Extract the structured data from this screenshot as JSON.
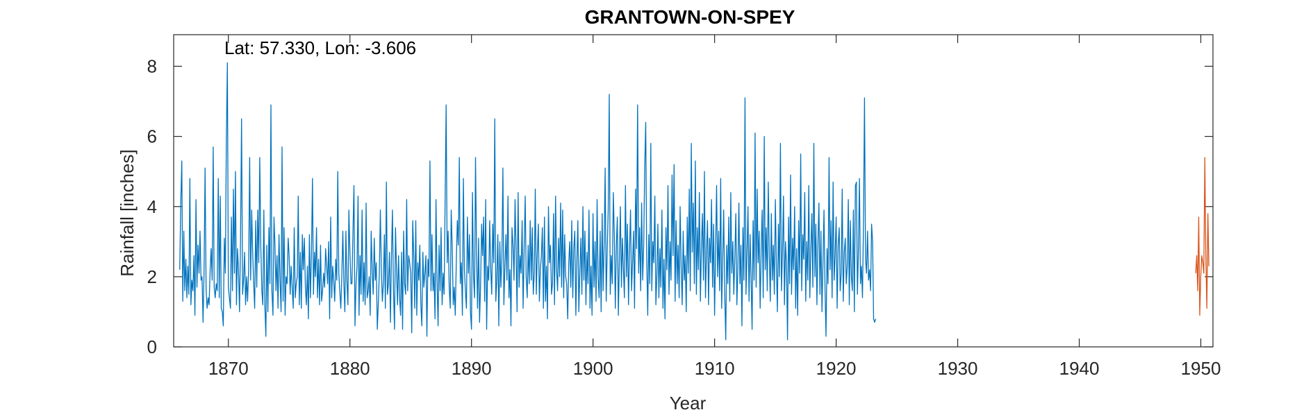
{
  "chart_data": {
    "type": "line",
    "title": "GRANTOWN-ON-SPEY",
    "annotation": "Lat: 57.330, Lon: -3.606",
    "xlabel": "Year",
    "ylabel": "Rainfall [inches]",
    "xlim": [
      1865.5,
      1951.0
    ],
    "ylim": [
      0,
      8.9
    ],
    "xticks": [
      1870,
      1880,
      1890,
      1900,
      1910,
      1920,
      1930,
      1940,
      1950
    ],
    "yticks": [
      0,
      2,
      4,
      6,
      8
    ],
    "grid": false,
    "series": [
      {
        "color": "#0072BD",
        "x_start": 1866.0,
        "x_step": 0.0833333,
        "values": [
          2.2,
          4.1,
          5.3,
          1.3,
          3.3,
          1.6,
          2.5,
          1.4,
          2.3,
          1.5,
          4.8,
          1.2,
          1.9,
          1.6,
          2.6,
          0.9,
          4.2,
          1.7,
          2.9,
          2.1,
          3.3,
          1.9,
          2.0,
          0.7,
          2.1,
          5.1,
          1.6,
          1.1,
          1.4,
          1.2,
          2.2,
          2.8,
          1.9,
          5.7,
          1.7,
          1.4,
          1.8,
          1.6,
          4.8,
          1.4,
          4.3,
          1.1,
          1.0,
          0.6,
          3.1,
          2.1,
          5.9,
          8.1,
          1.7,
          1.4,
          1.1,
          3.7,
          1.6,
          4.5,
          2.1,
          5.0,
          1.2,
          2.8,
          2.2,
          1.0,
          3.0,
          6.5,
          1.5,
          1.9,
          2.7,
          1.2,
          2.0,
          1.3,
          2.2,
          5.4,
          1.9,
          3.9,
          2.7,
          1.8,
          1.1,
          3.6,
          1.7,
          3.9,
          2.4,
          5.4,
          2.9,
          1.6,
          1.2,
          3.9,
          1.2,
          0.3,
          2.9,
          1.0,
          3.4,
          1.8,
          6.9,
          1.6,
          0.9,
          3.7,
          2.9,
          1.6,
          2.6,
          1.1,
          3.2,
          1.9,
          1.0,
          5.7,
          1.3,
          3.4,
          0.9,
          2.0,
          1.8,
          3.1,
          2.6,
          1.5,
          2.3,
          1.7,
          1.1,
          3.4,
          1.4,
          1.8,
          2.0,
          4.3,
          1.2,
          2.7,
          1.1,
          3.2,
          2.2,
          3.1,
          1.7,
          1.2,
          2.3,
          0.8,
          3.2,
          1.4,
          2.6,
          4.8,
          1.5,
          2.7,
          2.0,
          3.4,
          1.4,
          2.5,
          1.2,
          2.9,
          1.3,
          1.6,
          2.1,
          1.7,
          2.8,
          2.3,
          1.8,
          3.0,
          0.8,
          3.7,
          1.4,
          2.3,
          1.9,
          1.3,
          2.5,
          1.9,
          5.0,
          2.1,
          1.6,
          1.1,
          2.0,
          3.3,
          1.8,
          1.0,
          3.3,
          1.9,
          1.2,
          3.9,
          2.7,
          1.8,
          1.8,
          3.3,
          4.6,
          0.6,
          1.8,
          2.3,
          4.3,
          0.9,
          2.6,
          1.5,
          3.9,
          1.3,
          2.4,
          1.2,
          4.1,
          1.4,
          1.6,
          2.0,
          0.9,
          3.3,
          2.2,
          1.5,
          3.1,
          1.9,
          2.4,
          0.5,
          1.2,
          2.1,
          3.9,
          2.2,
          1.3,
          1.8,
          3.2,
          1.1,
          4.7,
          1.5,
          1.8,
          2.7,
          0.7,
          2.6,
          3.9,
          1.6,
          0.5,
          3.4,
          2.2,
          1.2,
          2.6,
          1.4,
          0.9,
          2.7,
          0.5,
          3.3,
          1.8,
          1.5,
          4.2,
          1.6,
          2.6,
          2.4,
          2.1,
          0.4,
          3.6,
          2.6,
          1.1,
          3.6,
          0.9,
          2.4,
          1.9,
          2.9,
          1.2,
          0.6,
          2.7,
          1.7,
          2.1,
          2.6,
          0.3,
          2.5,
          2.0,
          5.3,
          1.6,
          3.2,
          1.6,
          2.1,
          0.8,
          4.2,
          1.9,
          0.6,
          2.9,
          1.6,
          3.4,
          1.2,
          2.1,
          1.5,
          4.3,
          6.9,
          2.4,
          3.3,
          1.7,
          1.1,
          3.9,
          2.8,
          1.2,
          1.7,
          0.9,
          2.4,
          3.6,
          2.9,
          5.4,
          1.8,
          2.4,
          0.9,
          4.8,
          2.2,
          1.6,
          1.1,
          3.7,
          2.1,
          3.2,
          1.0,
          0.5,
          4.4,
          2.0,
          1.4,
          5.4,
          2.6,
          1.1,
          3.1,
          0.7,
          1.8,
          3.5,
          2.6,
          3.7,
          1.3,
          4.2,
          0.5,
          2.3,
          1.9,
          3.6,
          2.2,
          1.5,
          3.5,
          2.4,
          6.5,
          1.3,
          1.9,
          3.2,
          0.6,
          3.0,
          1.7,
          2.5,
          5.1,
          1.2,
          2.3,
          3.2,
          1.9,
          4.3,
          1.4,
          2.2,
          0.6,
          3.4,
          2.9,
          1.9,
          4.2,
          2.8,
          1.0,
          4.4,
          1.7,
          2.6,
          2.1,
          3.6,
          1.1,
          2.8,
          4.3,
          2.0,
          1.4,
          2.9,
          1.8,
          3.6,
          1.9,
          3.4,
          1.5,
          2.1,
          4.5,
          1.5,
          2.7,
          3.5,
          1.3,
          2.2,
          2.6,
          3.4,
          1.1,
          3.7,
          1.3,
          2.3,
          0.8,
          4.0,
          2.4,
          2.9,
          1.5,
          1.8,
          3.8,
          1.2,
          4.3,
          2.2,
          1.6,
          3.1,
          2.0,
          4.1,
          1.7,
          3.9,
          1.4,
          3.2,
          2.0,
          1.8,
          0.8,
          2.4,
          3.0,
          1.7,
          3.6,
          1.4,
          2.8,
          3.3,
          0.9,
          2.4,
          3.6,
          1.0,
          2.2,
          3.1,
          1.5,
          4.0,
          1.9,
          3.3,
          1.2,
          2.7,
          1.8,
          3.9,
          1.1,
          2.3,
          0.9,
          3.8,
          1.7,
          3.0,
          1.3,
          4.2,
          2.0,
          1.4,
          3.3,
          1.0,
          3.8,
          1.6,
          3.0,
          5.1,
          1.3,
          2.8,
          3.9,
          7.2,
          1.5,
          2.6,
          1.8,
          4.4,
          3.2,
          1.1,
          2.9,
          3.7,
          0.9,
          2.5,
          4.0,
          1.7,
          3.1,
          2.2,
          1.4,
          4.6,
          2.0,
          3.5,
          1.2,
          2.7,
          3.9,
          1.6,
          2.4,
          3.3,
          1.1,
          4.5,
          2.8,
          6.9,
          2.1,
          3.4,
          1.6,
          4.1,
          1.9,
          2.9,
          5.1,
          6.4,
          2.5,
          0.9,
          3.2,
          1.8,
          5.8,
          1.6,
          3.0,
          2.4,
          4.3,
          1.2,
          2.0,
          3.5,
          1.4,
          2.8,
          1.7,
          3.9,
          1.1,
          2.5,
          0.8,
          3.4,
          2.2,
          4.6,
          1.5,
          3.0,
          1.9,
          4.9,
          2.6,
          5.2,
          1.3,
          3.6,
          1.8,
          2.9,
          1.4,
          4.0,
          2.3,
          1.2,
          3.3,
          1.9,
          2.6,
          1.0,
          3.7,
          2.1,
          4.5,
          1.6,
          5.8,
          2.7,
          4.1,
          1.8,
          5.3,
          1.5,
          3.4,
          2.2,
          4.4,
          1.3,
          2.9,
          3.8,
          1.9,
          5.0,
          1.4,
          2.7,
          3.6,
          1.2,
          3.1,
          2.4,
          4.2,
          1.7,
          3.5,
          0.9,
          2.8,
          4.6,
          2.0,
          3.3,
          1.6,
          4.8,
          1.1,
          2.5,
          3.9,
          1.5,
          0.2,
          2.9,
          1.8,
          3.7,
          1.3,
          4.4,
          2.1,
          3.0,
          1.5,
          2.6,
          3.8,
          1.2,
          2.3,
          4.1,
          1.8,
          2.9,
          0.6,
          3.4,
          1.9,
          7.1,
          1.5,
          2.7,
          4.0,
          1.3,
          3.2,
          2.0,
          0.5,
          3.6,
          1.9,
          6.1,
          1.7,
          4.5,
          2.4,
          3.3,
          1.1,
          2.8,
          3.9,
          1.4,
          6.0,
          2.2,
          3.4,
          1.6,
          4.7,
          2.6,
          1.3,
          3.8,
          1.9,
          2.9,
          1.5,
          4.2,
          2.3,
          1.0,
          3.5,
          2.0,
          5.8,
          1.6,
          2.7,
          4.3,
          1.2,
          3.0,
          2.4,
          0.2,
          3.7,
          1.8,
          4.9,
          1.5,
          3.1,
          2.2,
          4.0,
          1.1,
          2.8,
          0.9,
          3.6,
          2.1,
          5.5,
          1.6,
          3.2,
          2.5,
          4.4,
          1.3,
          3.0,
          1.9,
          4.6,
          1.4,
          2.7,
          3.8,
          1.7,
          5.8,
          2.0,
          3.5,
          1.2,
          2.9,
          4.1,
          1.5,
          3.3,
          1.0,
          2.4,
          3.9,
          1.6,
          0.3,
          2.8,
          1.8,
          5.4,
          2.2,
          3.6,
          1.4,
          4.7,
          1.9,
          2.6,
          3.7,
          1.1,
          2.9,
          3.4,
          1.6,
          2.1,
          4.5,
          1.3,
          2.7,
          3.1,
          1.8,
          2.3,
          4.2,
          1.2,
          3.6,
          2.0,
          1.6,
          3.9,
          1.0,
          4.6,
          4.7,
          1.5,
          2.8,
          4.8,
          1.8,
          2.3,
          1.4,
          3.6,
          7.1,
          2.5,
          2.1,
          3.3,
          1.9,
          2.2,
          1.6,
          3.5,
          3.0,
          0.8,
          0.7,
          0.8
        ]
      },
      {
        "color": "#D95319",
        "x_start": 1949.58,
        "x_step": 0.0833333,
        "values": [
          2.1,
          2.6,
          1.6,
          3.7,
          0.9,
          2.0,
          2.6,
          2.4,
          2.1,
          5.4,
          2.6,
          1.1,
          3.8,
          2.3
        ]
      }
    ]
  }
}
